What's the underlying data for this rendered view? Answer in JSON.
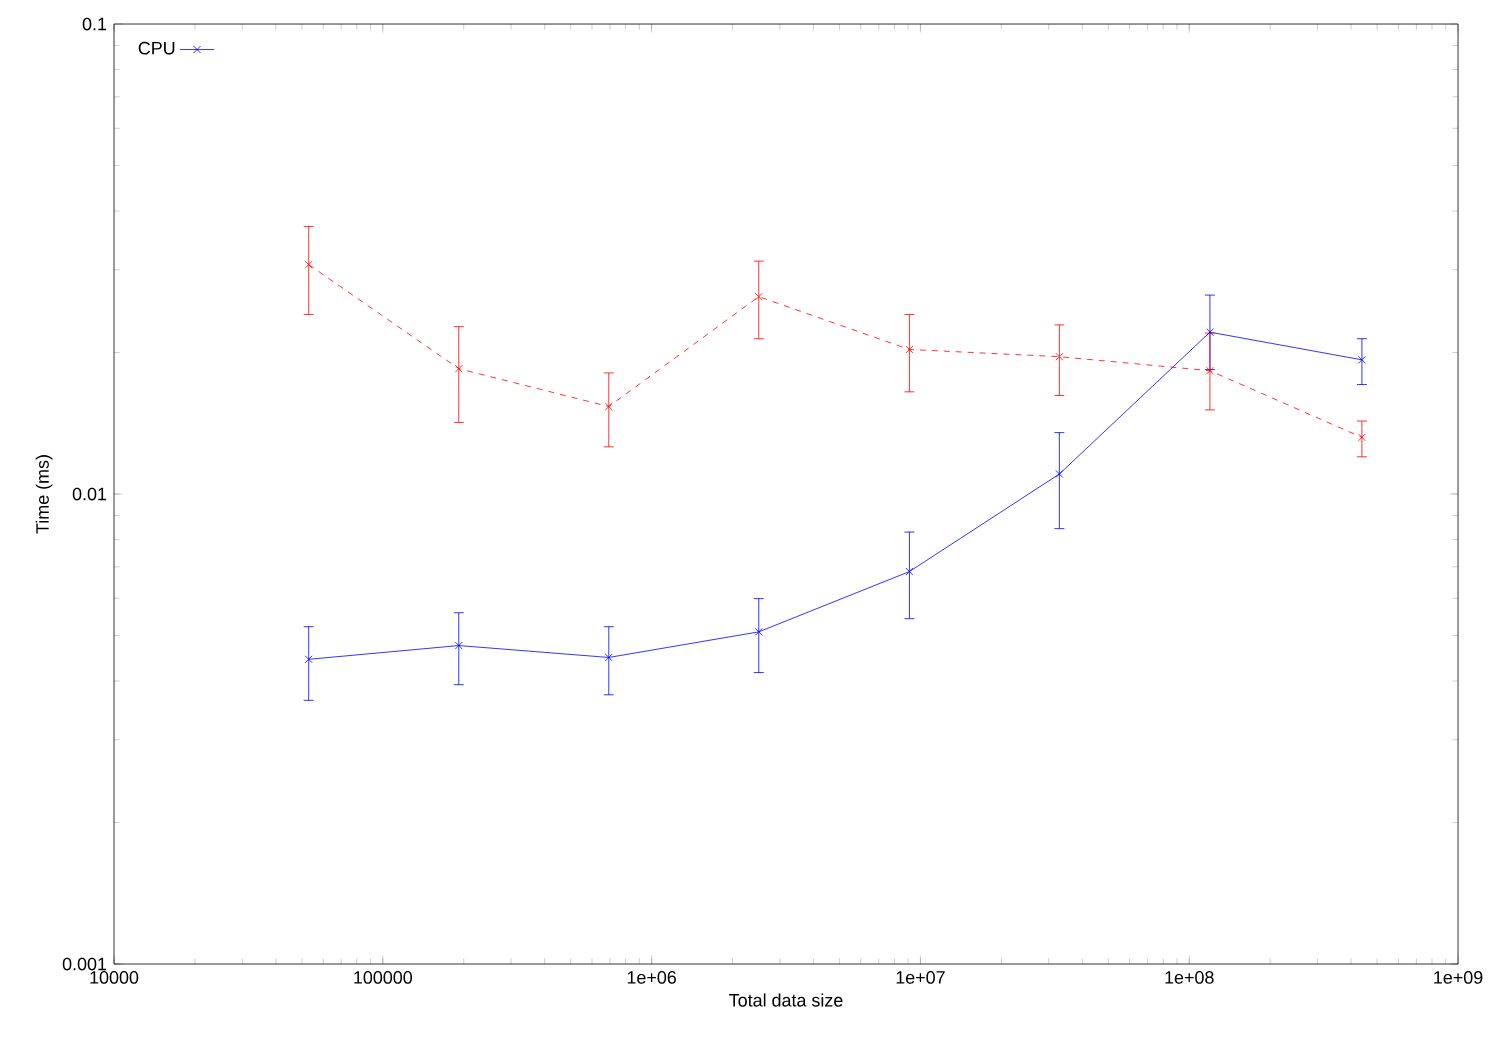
{
  "chart_data": {
    "type": "line",
    "xlabel": "Total data size",
    "ylabel": "Time (ms)",
    "log": "xy",
    "x": [
      53000,
      191700,
      692900,
      2504000,
      9100000,
      32880000,
      119400000,
      439000000
    ],
    "xlim": [
      10000,
      1000000000
    ],
    "xticks": [
      {
        "value": 10000,
        "label": "10000"
      },
      {
        "value": 100000,
        "label": "100000"
      },
      {
        "value": 1000000,
        "label": "1e+06"
      },
      {
        "value": 10000000,
        "label": "1e+07"
      },
      {
        "value": 100000000,
        "label": "1e+08"
      },
      {
        "value": 1000000000,
        "label": "1e+09"
      }
    ],
    "ylim": [
      0.001,
      0.1
    ],
    "yticks": [
      0.001,
      0.01,
      0.1
    ],
    "legend": "top left",
    "grid": false,
    "series": [
      {
        "name": "CPU",
        "color": "#0000ff",
        "marker": "cross",
        "line_style": "solid",
        "values": [
          0.00445,
          0.00476,
          0.00449,
          0.00509,
          0.00684,
          0.01103,
          0.0221,
          0.0193
        ],
        "errors": [
          [
            0.00364,
            0.00522
          ],
          [
            0.00393,
            0.00559
          ],
          [
            0.00374,
            0.00522
          ],
          [
            0.00417,
            0.00599
          ],
          [
            0.00543,
            0.0083
          ],
          [
            0.00844,
            0.01351
          ],
          [
            0.0184,
            0.0265
          ],
          [
            0.0171,
            0.0214
          ]
        ]
      },
      {
        "color": "#ff0000",
        "marker": "cross",
        "line_style": "dashed",
        "values": [
          0.03077,
          0.01848,
          0.01535,
          0.0263,
          0.0203,
          0.0196,
          0.0183,
          0.0132
        ],
        "errors": [
          [
            0.0241,
            0.0371
          ],
          [
            0.0142,
            0.0227
          ],
          [
            0.0126,
            0.0181
          ],
          [
            0.0214,
            0.0313
          ],
          [
            0.0165,
            0.0241
          ],
          [
            0.0162,
            0.0229
          ],
          [
            0.0151,
            0.022
          ],
          [
            0.012,
            0.0143
          ]
        ]
      }
    ]
  }
}
